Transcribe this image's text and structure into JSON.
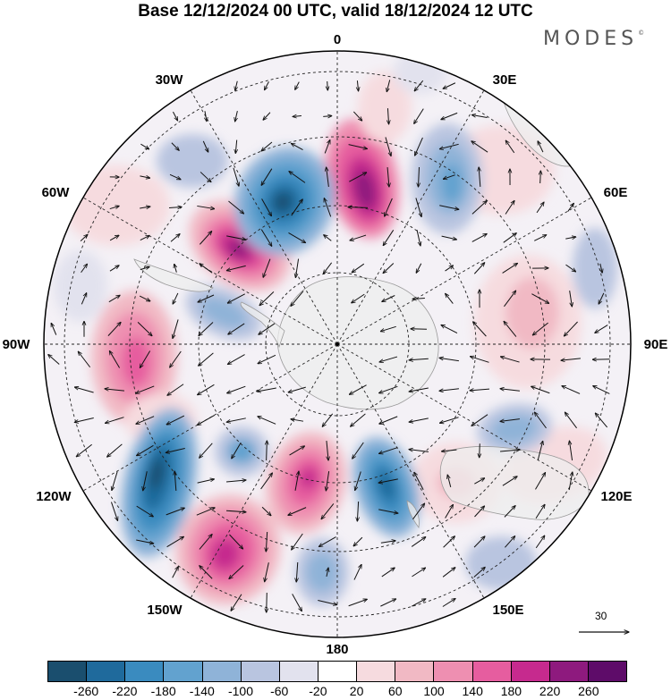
{
  "title": "Base 12/12/2024 00 UTC, valid 18/12/2024 12 UTC",
  "brand": "MODES",
  "brand_mark": "©",
  "longitude_labels": {
    "lon_0": "0",
    "lon_30e": "30E",
    "lon_60e": "60E",
    "lon_90e": "90E",
    "lon_120e": "120E",
    "lon_150e": "150E",
    "lon_180": "180",
    "lon_150w": "150W",
    "lon_120w": "120W",
    "lon_90w": "90W",
    "lon_60w": "60W",
    "lon_30w": "30W"
  },
  "colorbar": {
    "colors": [
      "#1a4e6e",
      "#1f6a9c",
      "#3a8bbf",
      "#62a2cf",
      "#8fb3d8",
      "#b9c5e0",
      "#e2e2ee",
      "#ffffff",
      "#f6dbdf",
      "#f1b9c4",
      "#ee8fb1",
      "#e65d9f",
      "#c62a8e",
      "#8e1a7e",
      "#5e0c69"
    ],
    "ticks": [
      "-260",
      "-220",
      "-180",
      "-140",
      "-100",
      "-60",
      "-20",
      "20",
      "60",
      "100",
      "140",
      "180",
      "220",
      "260"
    ]
  },
  "reference_vector": {
    "label": "30"
  },
  "map_style": {
    "land_color": "#ededed",
    "coast_color": "#9a9a9a",
    "grid_color": "#222222",
    "arrow_color": "#111111"
  }
}
